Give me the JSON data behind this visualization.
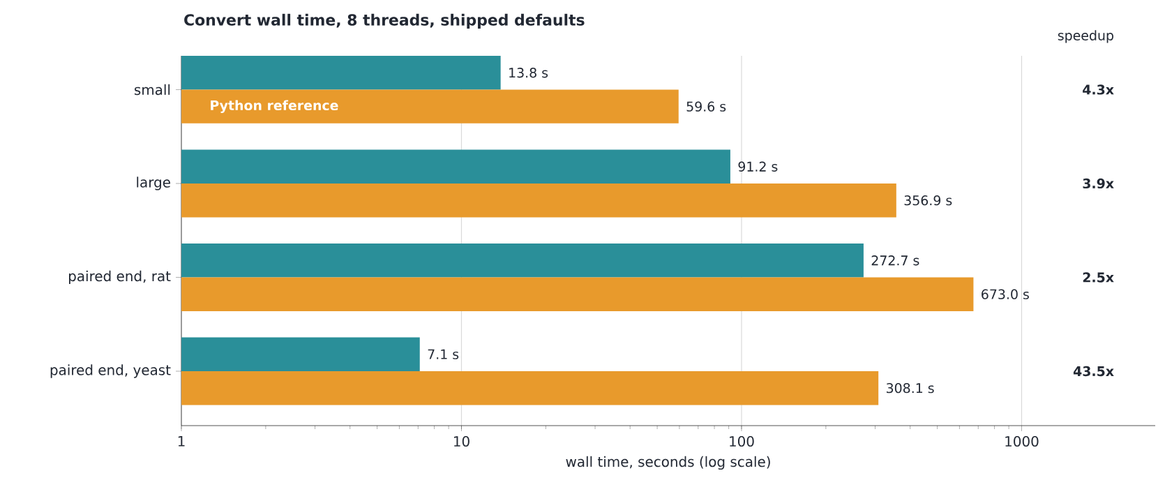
{
  "chart_data": {
    "type": "bar",
    "orientation": "horizontal",
    "log": "x",
    "title": "Convert wall time, 8 threads, shipped defaults",
    "xlabel": "wall time, seconds (log scale)",
    "categories": [
      "small",
      "large",
      "paired end, rat",
      "paired end, yeast"
    ],
    "series": [
      {
        "color": "#2a8f99",
        "values": [
          13.8,
          91.2,
          272.7,
          7.1
        ],
        "value_labels": [
          "13.8 s",
          "91.2 s",
          "272.7 s",
          "7.1 s"
        ]
      },
      {
        "name": "Python reference",
        "color": "#e89a2c",
        "values": [
          59.6,
          356.9,
          673.0,
          308.1
        ],
        "value_labels": [
          "59.6 s",
          "356.9 s",
          "673.0 s",
          "308.1 s"
        ]
      }
    ],
    "xlim": [
      1,
      3000
    ],
    "xticks": [
      1,
      10,
      100,
      1000
    ],
    "grid": "x",
    "annotations": [
      "speedup",
      "4.3x",
      "3.9x",
      "2.5x",
      "43.5x"
    ]
  }
}
